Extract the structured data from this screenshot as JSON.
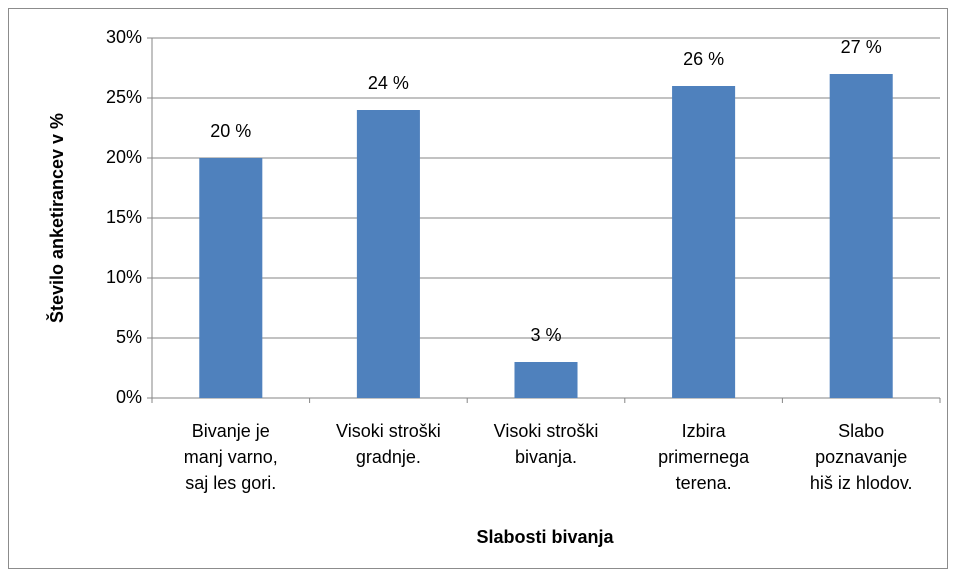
{
  "chart_data": {
    "type": "bar",
    "x_label": "Slabosti bivanja",
    "y_label": "Število anketirancev v %",
    "categories": [
      "Bivanje je manj varno, saj les gori.",
      "Visoki stroški gradnje.",
      "Visoki stroški bivanja.",
      "Izbira primernega terena.",
      "Slabo poznavanje hiš iz hlodov."
    ],
    "values": [
      20,
      24,
      3,
      26,
      27
    ],
    "value_labels": [
      "20 %",
      "24 %",
      "3 %",
      "26 %",
      "27 %"
    ],
    "color": "#4f81bd",
    "ylim": [
      0,
      30
    ],
    "yticks": [
      {
        "value": 0,
        "label": "0%"
      },
      {
        "value": 5,
        "label": "5%"
      },
      {
        "value": 10,
        "label": "10%"
      },
      {
        "value": 15,
        "label": "15%"
      },
      {
        "value": 20,
        "label": "20%"
      },
      {
        "value": 25,
        "label": "25%"
      },
      {
        "value": 30,
        "label": "30%"
      }
    ],
    "grid": true
  }
}
